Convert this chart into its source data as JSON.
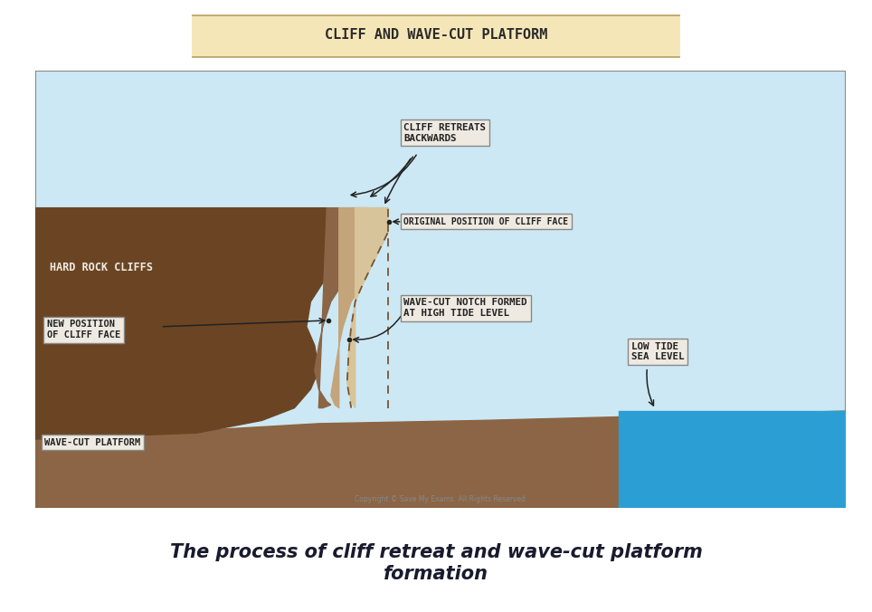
{
  "title": "CLIFF AND WAVE-CUT PLATFORM",
  "title_bg": "#f5e6b8",
  "title_fontsize": 11,
  "outer_bg": "#ffffff",
  "caption": "The process of cliff retreat and wave-cut platform\nformation",
  "caption_fontsize": 15,
  "copyright": "Copyright © Save My Exams. All Rights Reserved",
  "colors": {
    "sky": "#cce8f4",
    "dark_brown": "#6b4523",
    "medium_brown": "#8b6545",
    "tan": "#c4a47a",
    "light_tan": "#d8c49a",
    "sea_blue": "#2b9fd4",
    "dashed": "#7a5530",
    "label_bg": "#eeeae2",
    "label_border": "#888888",
    "wave_platform_bg": "#e8e2d8"
  }
}
